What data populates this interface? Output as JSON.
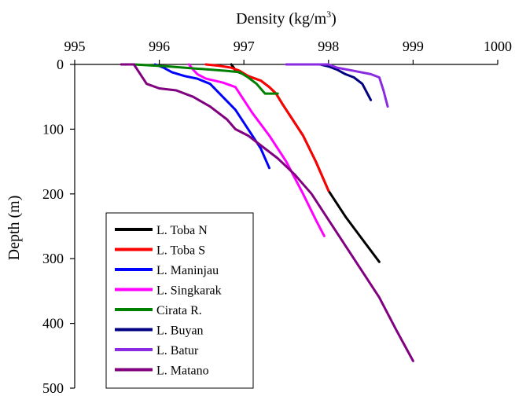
{
  "chart_data": {
    "type": "line",
    "xlabel": "Density (kg/m",
    "xlabel_sup": "3",
    "xlabel_close": ")",
    "ylabel": "Depth (m)",
    "x_axis_position": "top",
    "y_inverted": true,
    "xlim": [
      995,
      1000
    ],
    "ylim": [
      0,
      500
    ],
    "xticks": [
      "995",
      "996",
      "997",
      "998",
      "999",
      "1000"
    ],
    "yticks": [
      "0",
      "100",
      "200",
      "300",
      "400",
      "500"
    ],
    "grid": false,
    "legend_placement": "bottom-left",
    "series": [
      {
        "name": "L. Toba N",
        "color": "#000000",
        "points": [
          [
            996.85,
            0
          ],
          [
            996.88,
            5
          ],
          [
            996.9,
            10
          ],
          [
            997.05,
            18
          ],
          [
            997.2,
            25
          ],
          [
            997.3,
            35
          ],
          [
            997.38,
            45
          ],
          [
            997.45,
            60
          ],
          [
            997.55,
            80
          ],
          [
            997.7,
            110
          ],
          [
            997.85,
            150
          ],
          [
            998.0,
            195
          ],
          [
            998.2,
            235
          ],
          [
            998.4,
            270
          ],
          [
            998.6,
            305
          ]
        ]
      },
      {
        "name": "L. Toba S",
        "color": "#ff0000",
        "points": [
          [
            996.55,
            0
          ],
          [
            996.7,
            2
          ],
          [
            996.85,
            5
          ],
          [
            996.95,
            10
          ],
          [
            997.05,
            18
          ],
          [
            997.2,
            25
          ],
          [
            997.3,
            35
          ],
          [
            997.38,
            45
          ],
          [
            997.45,
            60
          ],
          [
            997.55,
            80
          ],
          [
            997.7,
            110
          ],
          [
            997.85,
            150
          ],
          [
            998.0,
            195
          ]
        ]
      },
      {
        "name": "L. Maninjau",
        "color": "#0000ff",
        "points": [
          [
            995.95,
            0
          ],
          [
            996.05,
            5
          ],
          [
            996.15,
            12
          ],
          [
            996.3,
            18
          ],
          [
            996.45,
            22
          ],
          [
            996.6,
            30
          ],
          [
            996.75,
            50
          ],
          [
            996.9,
            70
          ],
          [
            997.05,
            100
          ],
          [
            997.2,
            130
          ],
          [
            997.3,
            160
          ]
        ]
      },
      {
        "name": "L. Singkarak",
        "color": "#ff00ff",
        "points": [
          [
            996.35,
            0
          ],
          [
            996.4,
            8
          ],
          [
            996.45,
            15
          ],
          [
            996.55,
            22
          ],
          [
            996.75,
            28
          ],
          [
            996.9,
            35
          ],
          [
            997.0,
            55
          ],
          [
            997.1,
            75
          ],
          [
            997.3,
            110
          ],
          [
            997.5,
            150
          ],
          [
            997.7,
            200
          ],
          [
            997.85,
            240
          ],
          [
            997.95,
            265
          ]
        ]
      },
      {
        "name": "Cirata R.",
        "color": "#008000",
        "points": [
          [
            995.7,
            0
          ],
          [
            996.1,
            3
          ],
          [
            996.5,
            7
          ],
          [
            996.8,
            10
          ],
          [
            996.95,
            12
          ],
          [
            997.05,
            20
          ],
          [
            997.15,
            30
          ],
          [
            997.25,
            45
          ],
          [
            997.4,
            45
          ]
        ]
      },
      {
        "name": "L. Buyan",
        "color": "#000080",
        "points": [
          [
            997.9,
            0
          ],
          [
            998.0,
            3
          ],
          [
            998.1,
            8
          ],
          [
            998.2,
            15
          ],
          [
            998.3,
            20
          ],
          [
            998.4,
            30
          ],
          [
            998.5,
            55
          ]
        ]
      },
      {
        "name": "L. Batur",
        "color": "#8a2be2",
        "points": [
          [
            997.5,
            0
          ],
          [
            998.0,
            0
          ],
          [
            998.1,
            5
          ],
          [
            998.3,
            10
          ],
          [
            998.5,
            15
          ],
          [
            998.6,
            20
          ],
          [
            998.65,
            40
          ],
          [
            998.7,
            65
          ]
        ]
      },
      {
        "name": "L. Matano",
        "color": "#800080",
        "points": [
          [
            995.55,
            0
          ],
          [
            995.7,
            0
          ],
          [
            995.75,
            10
          ],
          [
            995.85,
            30
          ],
          [
            996.0,
            37
          ],
          [
            996.2,
            40
          ],
          [
            996.4,
            50
          ],
          [
            996.6,
            65
          ],
          [
            996.8,
            85
          ],
          [
            996.9,
            100
          ],
          [
            997.05,
            110
          ],
          [
            997.2,
            125
          ],
          [
            997.4,
            145
          ],
          [
            997.6,
            170
          ],
          [
            997.8,
            200
          ],
          [
            998.0,
            240
          ],
          [
            998.3,
            300
          ],
          [
            998.6,
            360
          ],
          [
            998.8,
            410
          ],
          [
            999.0,
            458
          ]
        ]
      }
    ]
  }
}
